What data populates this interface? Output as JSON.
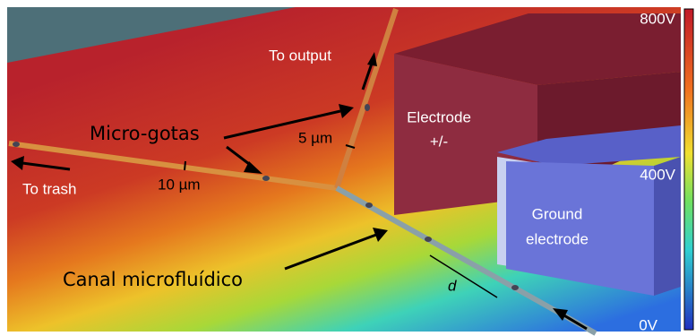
{
  "colorbar": {
    "max": "800V",
    "mid": "400V",
    "min": "0V"
  },
  "labels": {
    "to_output": "To output",
    "electrode": [
      "Electrode",
      "+/-"
    ],
    "micro_gotas": "Micro-gotas",
    "width_5": "5 µm",
    "width_10": "10 µm",
    "to_trash": "To trash",
    "ground_electrode": [
      "Ground",
      "electrode"
    ],
    "canal": "Canal microfluídico",
    "d": "d"
  }
}
